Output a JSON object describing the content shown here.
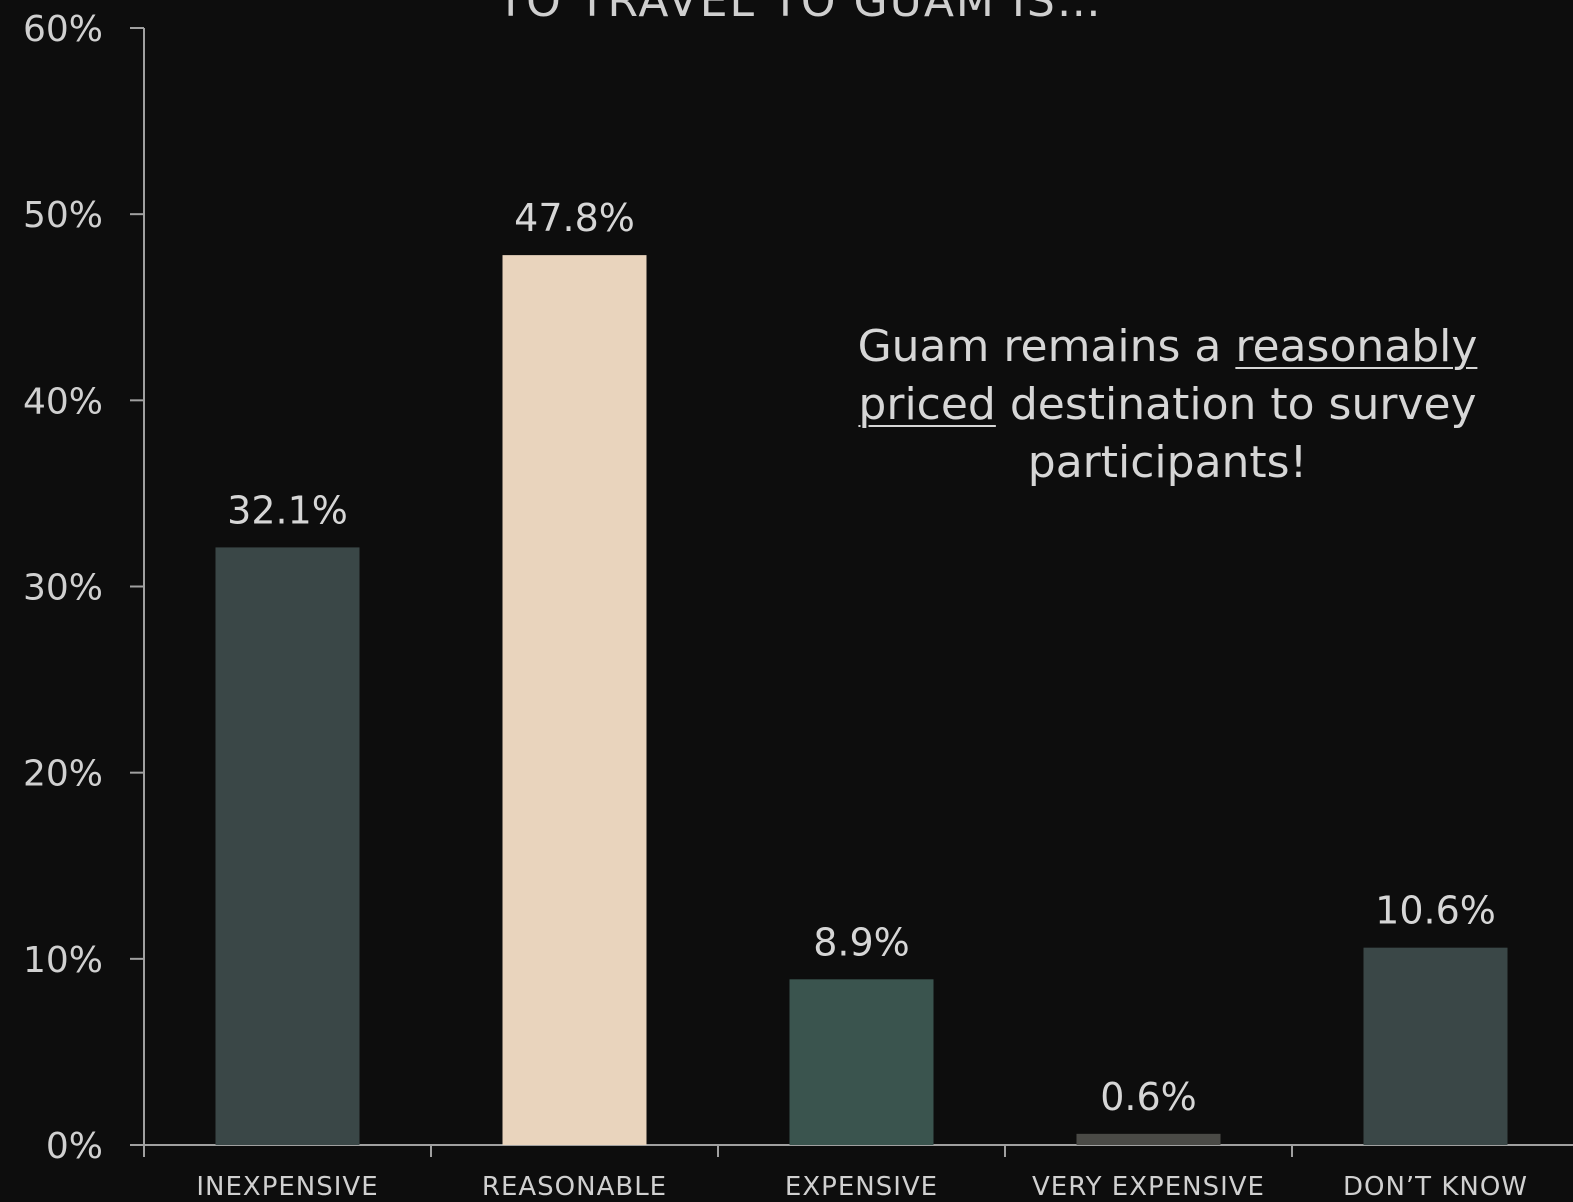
{
  "chart_data": {
    "type": "bar",
    "title": "TO TRAVEL TO GUAM IS…",
    "categories": [
      "INEXPENSIVE",
      "REASONABLE",
      "EXPENSIVE",
      "VERY EXPENSIVE",
      "DON’T KNOW"
    ],
    "values": [
      32.1,
      47.8,
      8.9,
      0.6,
      10.6
    ],
    "value_labels": [
      "32.1%",
      "47.8%",
      "8.9%",
      "0.6%",
      "10.6%"
    ],
    "bar_colors": [
      "#3a4747",
      "#e9d4bd",
      "#3a544e",
      "#4a4a46",
      "#3a4747"
    ],
    "ylim": [
      0,
      60
    ],
    "yticks": [
      0,
      10,
      20,
      30,
      40,
      50,
      60
    ],
    "ytick_labels": [
      "0%",
      "10%",
      "20%",
      "30%",
      "40%",
      "50%",
      "60%"
    ],
    "xlabel": "",
    "ylabel": "",
    "grid": false,
    "legend": "none",
    "axis_color": "#a0a0a0",
    "background": "#0d0d0d"
  },
  "annotation": {
    "part1": "Guam remains a ",
    "underlined1": "reasonably",
    "underlined2": "priced",
    "part2": " destination to survey participants!"
  }
}
